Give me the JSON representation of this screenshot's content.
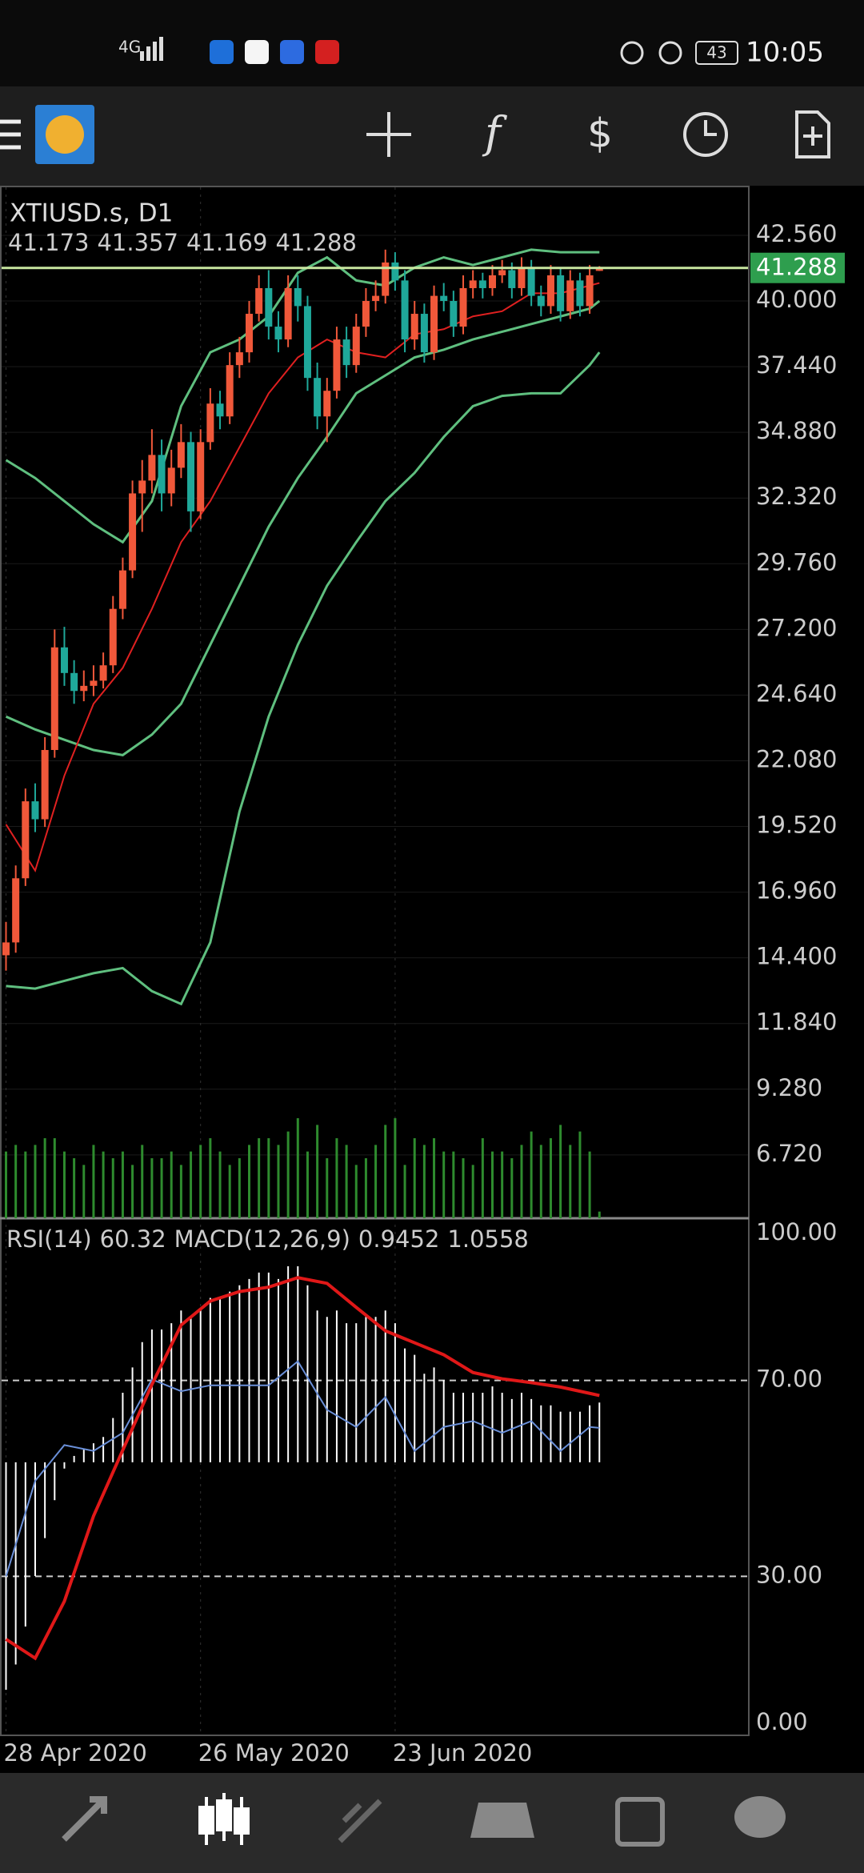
{
  "status_bar": {
    "network": "4G",
    "battery": "43",
    "time": "10:05"
  },
  "toolbar": {
    "function_icon": "f"
  },
  "chart_data": [
    {
      "type": "candlestick",
      "symbol": "XTIUSD.s, D1",
      "candles": [
        [
          14.5,
          15.8,
          13.9,
          15.0
        ],
        [
          15.0,
          18.0,
          14.6,
          17.5
        ],
        [
          17.5,
          21.0,
          17.2,
          20.5
        ],
        [
          20.5,
          21.2,
          19.3,
          19.8
        ],
        [
          19.8,
          23.0,
          19.5,
          22.5
        ],
        [
          22.5,
          27.2,
          22.2,
          26.5
        ],
        [
          26.5,
          27.3,
          25.0,
          25.5
        ],
        [
          25.5,
          26.0,
          24.3,
          24.8
        ],
        [
          24.8,
          25.6,
          24.4,
          25.0
        ],
        [
          25.0,
          25.8,
          24.6,
          25.2
        ],
        [
          25.2,
          26.3,
          24.9,
          25.8
        ],
        [
          25.8,
          28.5,
          25.5,
          28.0
        ],
        [
          28.0,
          30.0,
          27.6,
          29.5
        ],
        [
          29.5,
          33.0,
          29.2,
          32.5
        ],
        [
          32.5,
          33.8,
          31.0,
          33.0
        ],
        [
          33.0,
          35.0,
          32.5,
          34.0
        ],
        [
          34.0,
          34.6,
          31.8,
          32.5
        ],
        [
          32.5,
          34.2,
          32.0,
          33.5
        ],
        [
          33.5,
          35.2,
          33.1,
          34.5
        ],
        [
          34.5,
          34.9,
          31.0,
          31.8
        ],
        [
          31.8,
          35.0,
          31.5,
          34.5
        ],
        [
          34.5,
          36.6,
          34.2,
          36.0
        ],
        [
          36.0,
          36.5,
          35.0,
          35.5
        ],
        [
          35.5,
          38.0,
          35.2,
          37.5
        ],
        [
          37.5,
          38.6,
          37.0,
          38.0
        ],
        [
          38.0,
          40.0,
          37.6,
          39.5
        ],
        [
          39.5,
          41.0,
          39.2,
          40.5
        ],
        [
          40.5,
          41.2,
          38.5,
          39.0
        ],
        [
          39.0,
          39.6,
          38.0,
          38.5
        ],
        [
          38.5,
          41.0,
          38.2,
          40.5
        ],
        [
          40.5,
          41.0,
          39.2,
          39.8
        ],
        [
          39.8,
          40.2,
          36.5,
          37.0
        ],
        [
          37.0,
          37.6,
          35.0,
          35.5
        ],
        [
          35.5,
          37.0,
          34.5,
          36.5
        ],
        [
          36.5,
          39.0,
          36.2,
          38.5
        ],
        [
          38.5,
          39.0,
          37.0,
          37.5
        ],
        [
          37.5,
          39.5,
          37.2,
          39.0
        ],
        [
          39.0,
          40.5,
          38.6,
          40.0
        ],
        [
          40.0,
          40.8,
          39.6,
          40.2
        ],
        [
          40.2,
          42.0,
          39.9,
          41.5
        ],
        [
          41.5,
          41.9,
          40.4,
          40.8
        ],
        [
          40.8,
          41.2,
          38.0,
          38.5
        ],
        [
          38.5,
          40.0,
          38.1,
          39.5
        ],
        [
          39.5,
          39.9,
          37.6,
          38.0
        ],
        [
          38.0,
          40.6,
          37.7,
          40.2
        ],
        [
          40.2,
          40.7,
          39.6,
          40.0
        ],
        [
          40.0,
          40.4,
          38.6,
          39.0
        ],
        [
          39.0,
          41.0,
          38.7,
          40.5
        ],
        [
          40.5,
          41.2,
          40.1,
          40.8
        ],
        [
          40.8,
          41.1,
          40.1,
          40.5
        ],
        [
          40.5,
          41.4,
          40.2,
          41.0
        ],
        [
          41.0,
          41.6,
          40.7,
          41.2
        ],
        [
          41.2,
          41.5,
          40.1,
          40.5
        ],
        [
          40.5,
          41.7,
          40.2,
          41.3
        ],
        [
          41.3,
          41.6,
          39.8,
          40.2
        ],
        [
          40.2,
          40.6,
          39.4,
          39.8
        ],
        [
          39.8,
          41.4,
          39.5,
          41.0
        ],
        [
          41.0,
          41.3,
          39.2,
          39.6
        ],
        [
          39.6,
          41.2,
          39.3,
          40.8
        ],
        [
          40.8,
          41.1,
          39.4,
          39.8
        ],
        [
          39.8,
          41.4,
          39.5,
          41.0
        ],
        [
          41.173,
          41.357,
          41.169,
          41.288
        ]
      ],
      "bull_color": "#f0583a",
      "bear_color": "#1fa89a",
      "price_line_color": "#c8e6a0",
      "price_tag_color": "#2e9e4e",
      "ylim": [
        4.25,
        44.43
      ],
      "yticks": [
        {
          "value": 42.56,
          "label": "42.560"
        },
        {
          "value": 40,
          "label": "40.000"
        },
        {
          "value": 37.44,
          "label": "37.440"
        },
        {
          "value": 34.88,
          "label": "34.880"
        },
        {
          "value": 32.32,
          "label": "32.320"
        },
        {
          "value": 29.76,
          "label": "29.760"
        },
        {
          "value": 27.2,
          "label": "27.200"
        },
        {
          "value": 24.64,
          "label": "24.640"
        },
        {
          "value": 22.08,
          "label": "22.080"
        },
        {
          "value": 19.52,
          "label": "19.520"
        },
        {
          "value": 16.96,
          "label": "16.960"
        },
        {
          "value": 14.4,
          "label": "14.400"
        },
        {
          "value": 11.84,
          "label": "11.840"
        },
        {
          "value": 9.28,
          "label": "9.280"
        },
        {
          "value": 6.72,
          "label": "6.720"
        }
      ],
      "x_labels": [
        "28 Apr 2020",
        "26 May 2020",
        "23 Jun 2020"
      ],
      "x_label_index": [
        0,
        20,
        40
      ],
      "line_x": [
        0,
        3,
        6,
        9,
        12,
        15,
        18,
        21,
        24,
        27,
        30,
        33,
        36,
        39,
        42,
        45,
        48,
        51,
        54,
        57,
        60,
        61
      ],
      "bands": {
        "color": "#5fbf7f",
        "upper": [
          33.8,
          33.1,
          32.2,
          31.3,
          30.6,
          32.2,
          35.9,
          38.0,
          38.5,
          39.4,
          41.1,
          41.7,
          40.8,
          40.6,
          41.3,
          41.7,
          41.4,
          41.7,
          42.0,
          41.9,
          41.9,
          41.9
        ],
        "middle": [
          23.8,
          23.3,
          22.9,
          22.5,
          22.3,
          23.1,
          24.3,
          26.6,
          28.9,
          31.2,
          33.1,
          34.7,
          36.4,
          37.1,
          37.8,
          38.1,
          38.5,
          38.8,
          39.1,
          39.4,
          39.7,
          40.0
        ],
        "lower": [
          13.3,
          13.2,
          13.5,
          13.8,
          14.0,
          13.1,
          12.6,
          15.0,
          20.1,
          23.8,
          26.6,
          28.9,
          30.6,
          32.2,
          33.3,
          34.7,
          35.9,
          36.3,
          36.4,
          36.4,
          37.5,
          38.0
        ]
      },
      "ma": {
        "color": "#e02020",
        "values": [
          19.6,
          17.8,
          21.5,
          24.3,
          25.7,
          28.0,
          30.6,
          32.2,
          34.3,
          36.4,
          37.8,
          38.5,
          38.0,
          37.8,
          38.7,
          38.9,
          39.4,
          39.6,
          40.3,
          40.3,
          40.6,
          40.7
        ]
      },
      "volume": {
        "color": "#2e8b2e",
        "values": [
          5,
          5.5,
          5,
          5.5,
          6,
          6,
          5,
          4.5,
          4,
          5.5,
          5,
          4.5,
          5,
          4,
          5.5,
          4.5,
          4.5,
          5,
          4,
          5,
          5.5,
          6,
          5,
          4,
          4.5,
          5.5,
          6,
          6,
          5.5,
          6.5,
          7.5,
          5,
          7,
          4.5,
          6,
          5.5,
          4,
          4.5,
          5.5,
          7,
          7.5,
          4,
          6,
          5.5,
          6,
          5,
          5,
          4.5,
          4,
          6,
          5,
          5,
          4.5,
          5.5,
          6.5,
          5.5,
          6,
          7,
          5.5,
          6.5,
          5,
          0.5
        ]
      }
    },
    {
      "type": "oscillator",
      "rsi_label": "RSI(14)",
      "macd_label": "MACD(12,26,9)",
      "ylim": [
        -2.45,
        103.1
      ],
      "yticks": [
        {
          "value": 100,
          "label": "100.00"
        },
        {
          "value": 70,
          "label": "70.00"
        },
        {
          "value": 30,
          "label": "30.00"
        },
        {
          "value": 0,
          "label": "0.00"
        }
      ],
      "levels": [
        70,
        30
      ],
      "line_x": [
        0,
        3,
        6,
        9,
        12,
        15,
        18,
        21,
        24,
        27,
        30,
        33,
        36,
        39,
        42,
        45,
        48,
        51,
        54,
        57,
        60,
        61
      ],
      "rsi": {
        "color": "#6a8fd8",
        "values": [
          30,
          49.5,
          56.8,
          55.6,
          59.3,
          70.2,
          67.8,
          69,
          69,
          69,
          73.9,
          64,
          60.5,
          66.6,
          55.6,
          60.5,
          61.7,
          59.3,
          61.7,
          55.6,
          60.5,
          60.32
        ]
      },
      "y2lim": [
        -4.32,
        3.86
      ],
      "macd": {
        "axis": "y2",
        "color": "#ffffff",
        "values": [
          -3.6,
          -3.2,
          -2.6,
          -1.8,
          -1.2,
          -0.6,
          -0.1,
          0.1,
          0.2,
          0.3,
          0.4,
          0.7,
          1.1,
          1.5,
          1.9,
          2.1,
          2.1,
          2.2,
          2.4,
          2.3,
          2.4,
          2.6,
          2.6,
          2.7,
          2.8,
          2.9,
          3.0,
          3.0,
          2.9,
          3.1,
          3.1,
          2.8,
          2.4,
          2.3,
          2.4,
          2.2,
          2.2,
          2.3,
          2.3,
          2.4,
          2.2,
          1.8,
          1.7,
          1.4,
          1.5,
          1.3,
          1.1,
          1.1,
          1.1,
          1.1,
          1.2,
          1.1,
          1.0,
          1.1,
          1.0,
          0.9,
          0.9,
          0.8,
          0.8,
          0.8,
          0.9,
          0.9452
        ]
      },
      "signal": {
        "axis": "y2",
        "color": "#e01818",
        "values": [
          -2.8,
          -3.1,
          -2.2,
          -0.85,
          0.19,
          1.23,
          2.17,
          2.55,
          2.7,
          2.77,
          2.92,
          2.83,
          2.45,
          2.08,
          1.89,
          1.7,
          1.42,
          1.32,
          1.26,
          1.19,
          1.09,
          1.0558
        ]
      }
    }
  ]
}
